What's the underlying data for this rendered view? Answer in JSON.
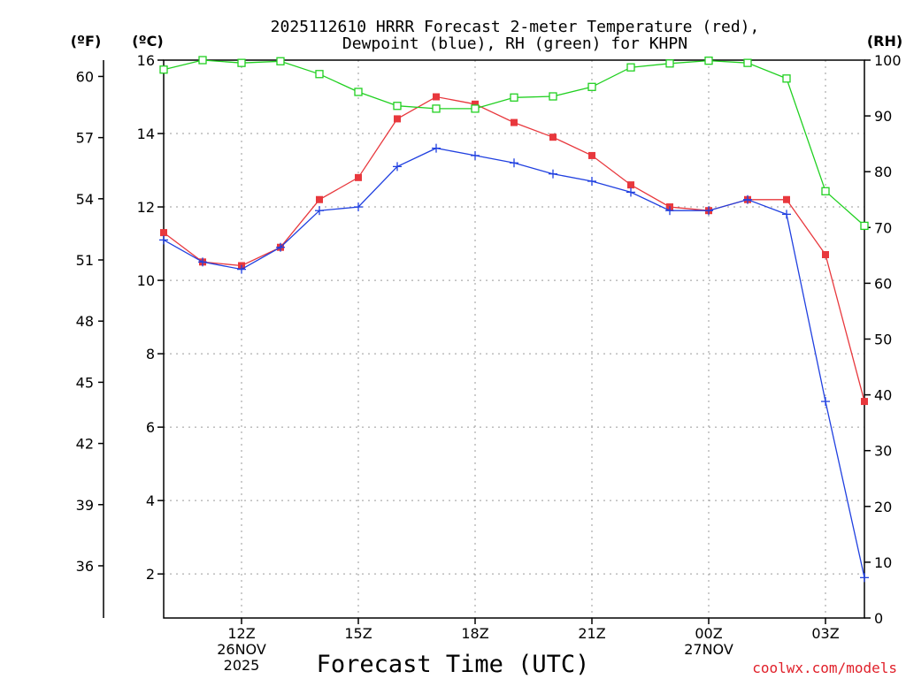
{
  "chart_data": {
    "type": "line",
    "title": "2025112610 HRRR Forecast 2-meter Temperature (red),",
    "subtitle": "Dewpoint (blue), RH (green) for KHPN",
    "xlabel": "Forecast Time (UTC)",
    "units": {
      "fahrenheit": "(ºF)",
      "celsius": "(ºC)",
      "rh": "(RH)"
    },
    "credit": "coolwx.com/models",
    "x_hours": [
      0,
      1,
      2,
      3,
      4,
      5,
      6,
      7,
      8,
      9,
      10,
      11,
      12,
      13,
      14,
      15,
      16,
      17,
      18
    ],
    "xlim": [
      0,
      18
    ],
    "ylim_celsius": [
      0.8,
      16
    ],
    "ylim_rh": [
      0,
      100
    ],
    "x_ticks": [
      {
        "x": 2,
        "lines": [
          "12Z",
          "26NOV",
          "2025"
        ]
      },
      {
        "x": 5,
        "lines": [
          "15Z"
        ]
      },
      {
        "x": 8,
        "lines": [
          "18Z"
        ]
      },
      {
        "x": 11,
        "lines": [
          "21Z"
        ]
      },
      {
        "x": 14,
        "lines": [
          "00Z",
          "27NOV"
        ]
      },
      {
        "x": 17,
        "lines": [
          "03Z"
        ]
      }
    ],
    "celsius_ticks": [
      "2",
      "4",
      "6",
      "8",
      "10",
      "12",
      "14",
      "16"
    ],
    "fahrenheit_ticks": [
      "36",
      "39",
      "42",
      "45",
      "48",
      "51",
      "54",
      "57",
      "60"
    ],
    "rh_ticks": [
      "0",
      "10",
      "20",
      "30",
      "40",
      "50",
      "60",
      "70",
      "80",
      "90",
      "100"
    ],
    "series": [
      {
        "name": "Temperature",
        "unit": "C",
        "color": "#e8383d",
        "marker": "filled-square",
        "values": [
          11.3,
          10.5,
          10.4,
          10.9,
          12.2,
          12.8,
          14.4,
          15.0,
          14.8,
          14.3,
          13.9,
          13.4,
          12.6,
          12.0,
          11.9,
          12.2,
          12.2,
          10.7,
          6.7
        ]
      },
      {
        "name": "Dewpoint",
        "unit": "C",
        "color": "#2040e0",
        "marker": "plus",
        "values": [
          11.1,
          10.5,
          10.3,
          10.9,
          11.9,
          12.0,
          13.1,
          13.6,
          13.4,
          13.2,
          12.9,
          12.7,
          12.4,
          11.9,
          11.9,
          12.2,
          11.8,
          6.7,
          1.9
        ]
      },
      {
        "name": "RH",
        "unit": "%",
        "color": "#20d020",
        "marker": "open-square",
        "values": [
          98.3,
          100,
          99.5,
          99.8,
          97.5,
          94.3,
          91.8,
          91.3,
          91.3,
          93.3,
          93.5,
          95.2,
          98.7,
          99.4,
          99.9,
          99.5,
          96.7,
          76.5,
          70.3
        ]
      }
    ]
  }
}
